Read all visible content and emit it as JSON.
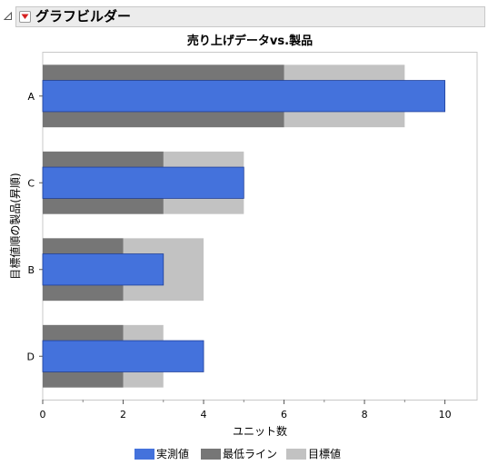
{
  "header": {
    "title": "グラフビルダー",
    "collapse_icon": "disclosure-triangle-icon",
    "menu_icon": "red-triangle-menu-icon"
  },
  "chart_data": {
    "type": "bar",
    "orientation": "horizontal",
    "title": "売り上げデータvs.製品",
    "xlabel": "ユニット数",
    "ylabel": "目標値順の製品(昇順)",
    "categories": [
      "A",
      "C",
      "B",
      "D"
    ],
    "xlim": [
      0,
      10.8
    ],
    "xticks": [
      0,
      2,
      4,
      6,
      8,
      10
    ],
    "grid": false,
    "legend_position": "bottom",
    "series": [
      {
        "name": "実測値",
        "values": [
          10,
          5,
          3,
          4
        ],
        "color": "#4472dc"
      },
      {
        "name": "最低ライン",
        "values": [
          6,
          3,
          2,
          2
        ],
        "color": "#767676"
      },
      {
        "name": "目標値",
        "values": [
          9,
          5,
          4,
          3
        ],
        "color": "#c2c2c2"
      }
    ]
  }
}
